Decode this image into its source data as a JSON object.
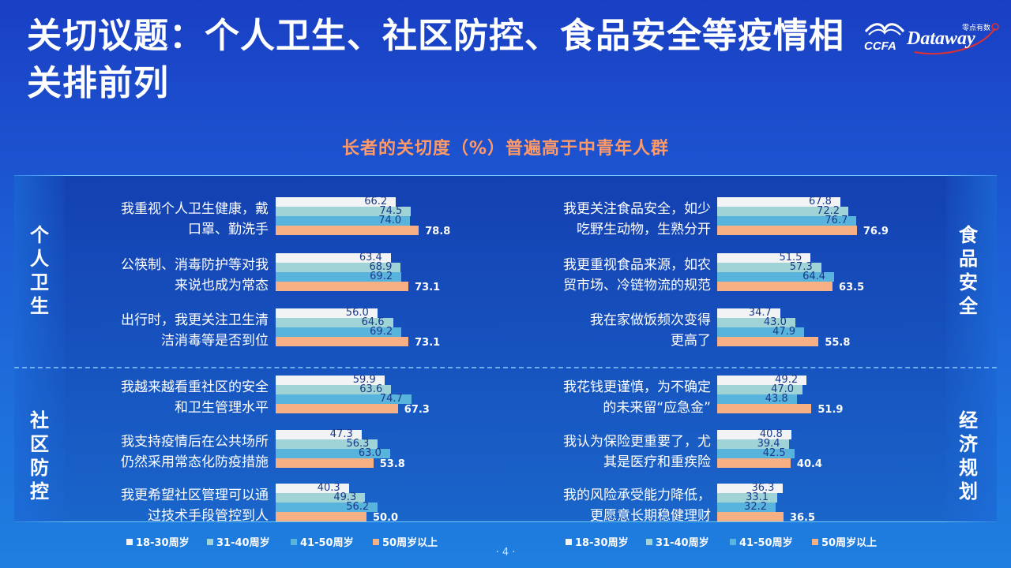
{
  "title": "关切议题：个人卫生、社区防控、食品安全等疫情相关排前列",
  "logo": {
    "ccfa": "CCFA",
    "dataway": "Dataway",
    "cn": "零点有数"
  },
  "subtitle": "长者的关切度（%）普遍高于中青年人群",
  "side_labels": {
    "personal": "个人卫生",
    "community": "社区防控",
    "food": "食品安全",
    "economy": "经济规划"
  },
  "series_colors": [
    "#f2f3f5",
    "#9fd3d6",
    "#58b4dc",
    "#f6b083"
  ],
  "chart_data": [
    {
      "type": "bar",
      "series_names": [
        "18-30周岁",
        "31-40周岁",
        "41-50周岁",
        "50周岁以上"
      ],
      "categories": [
        "我重视个人卫生健康，戴口罩、勤洗手",
        "公筷制、消毒防护等对我来说也成为常态",
        "出行时，我更关注卫生清洁消毒等是否到位",
        "我越来越看重社区的安全和卫生管理水平",
        "我支持疫情后在公共场所仍然采用常态化防疫措施",
        "我更希望社区管理可以通过技术手段管控到人"
      ],
      "values": [
        [
          66.2,
          74.5,
          74.0,
          78.8
        ],
        [
          63.4,
          68.9,
          69.2,
          73.1
        ],
        [
          56.0,
          64.6,
          69.2,
          73.1
        ],
        [
          59.9,
          63.6,
          74.7,
          67.3
        ],
        [
          47.3,
          56.3,
          63.0,
          53.8
        ],
        [
          40.3,
          49.3,
          56.2,
          50.0
        ]
      ],
      "xlim": [
        0,
        100
      ]
    },
    {
      "type": "bar",
      "series_names": [
        "18-30周岁",
        "31-40周岁",
        "41-50周岁",
        "50周岁以上"
      ],
      "categories": [
        "我更关注食品安全，如少吃野生动物，生熟分开",
        "我更重视食品来源，如农贸市场、冷链物流的规范",
        "我在家做饭频次变得更高了",
        "我花钱更谨慎，为不确定的未来留“应急金”",
        "我认为保险更重要了，尤其是医疗和重疾险",
        "我的风险承受能力降低，更愿意长期稳健理财"
      ],
      "values": [
        [
          67.8,
          72.2,
          76.7,
          76.9
        ],
        [
          51.5,
          57.3,
          64.4,
          63.5
        ],
        [
          34.7,
          43.0,
          47.9,
          55.8
        ],
        [
          49.2,
          47.0,
          43.8,
          51.9
        ],
        [
          40.8,
          39.4,
          42.5,
          40.4
        ],
        [
          36.3,
          33.1,
          32.2,
          36.5
        ]
      ],
      "xlim": [
        0,
        100
      ]
    }
  ],
  "left_rows": [
    {
      "l1": "我重视个人卫生健康，戴",
      "l2": "口罩、勤洗手",
      "v": [
        "66.2",
        "74.5",
        "74.0",
        "78.8"
      ]
    },
    {
      "l1": "公筷制、消毒防护等对我",
      "l2": "来说也成为常态",
      "v": [
        "63.4",
        "68.9",
        "69.2",
        "73.1"
      ]
    },
    {
      "l1": "出行时，我更关注卫生清",
      "l2": "洁消毒等是否到位",
      "v": [
        "56.0",
        "64.6",
        "69.2",
        "73.1"
      ]
    },
    {
      "l1": "我越来越看重社区的安全",
      "l2": "和卫生管理水平",
      "v": [
        "59.9",
        "63.6",
        "74.7",
        "67.3"
      ]
    },
    {
      "l1": "我支持疫情后在公共场所",
      "l2": "仍然采用常态化防疫措施",
      "v": [
        "47.3",
        "56.3",
        "63.0",
        "53.8"
      ]
    },
    {
      "l1": "我更希望社区管理可以通",
      "l2": "过技术手段管控到人",
      "v": [
        "40.3",
        "49.3",
        "56.2",
        "50.0"
      ]
    }
  ],
  "right_rows": [
    {
      "l1": "我更关注食品安全，如少",
      "l2": "吃野生动物，生熟分开",
      "v": [
        "67.8",
        "72.2",
        "76.7",
        "76.9"
      ]
    },
    {
      "l1": "我更重视食品来源，如农",
      "l2": "贸市场、冷链物流的规范",
      "v": [
        "51.5",
        "57.3",
        "64.4",
        "63.5"
      ]
    },
    {
      "l1": "我在家做饭频次变得",
      "l2": "更高了",
      "v": [
        "34.7",
        "43.0",
        "47.9",
        "55.8"
      ]
    },
    {
      "l1": "我花钱更谨慎，为不确定",
      "l2": "的未来留“应急金”",
      "v": [
        "49.2",
        "47.0",
        "43.8",
        "51.9"
      ]
    },
    {
      "l1": "我认为保险更重要了，尤",
      "l2": "其是医疗和重疾险",
      "v": [
        "40.8",
        "39.4",
        "42.5",
        "40.4"
      ]
    },
    {
      "l1": "我的风险承受能力降低，",
      "l2": "更愿意长期稳健理财",
      "v": [
        "36.3",
        "33.1",
        "32.2",
        "36.5"
      ]
    }
  ],
  "legend": [
    "18-30周岁",
    "31-40周岁",
    "41-50周岁",
    "50周岁以上"
  ],
  "page_number": "· 4 ·"
}
